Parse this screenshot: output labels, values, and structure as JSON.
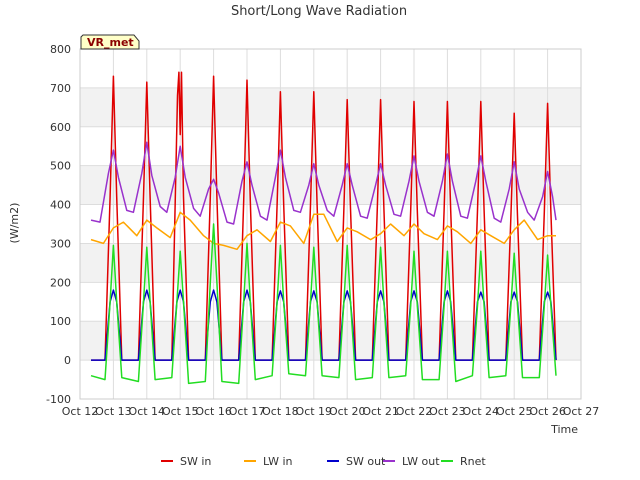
{
  "chart_data": {
    "type": "line",
    "title": "Short/Long Wave Radiation",
    "station_label": "VR_met",
    "xlabel": "Time",
    "ylabel": "(W/m2)",
    "xlim": [
      12,
      27
    ],
    "ylim": [
      -100,
      800
    ],
    "x_ticks": [
      {
        "v": 12,
        "label": "Oct 12"
      },
      {
        "v": 13,
        "label": "Oct 13"
      },
      {
        "v": 14,
        "label": "Oct 14"
      },
      {
        "v": 15,
        "label": "Oct 15"
      },
      {
        "v": 16,
        "label": "Oct 16"
      },
      {
        "v": 17,
        "label": "Oct 17"
      },
      {
        "v": 18,
        "label": "Oct 18"
      },
      {
        "v": 19,
        "label": "Oct 19"
      },
      {
        "v": 20,
        "label": "Oct 20"
      },
      {
        "v": 21,
        "label": "Oct 21"
      },
      {
        "v": 22,
        "label": "Oct 22"
      },
      {
        "v": 23,
        "label": "Oct 23"
      },
      {
        "v": 24,
        "label": "Oct 24"
      },
      {
        "v": 25,
        "label": "Oct 25"
      },
      {
        "v": 26,
        "label": "Oct 26"
      },
      {
        "v": 27,
        "label": "Oct 27"
      }
    ],
    "y_ticks": [
      {
        "v": -100,
        "label": "-100"
      },
      {
        "v": 0,
        "label": "0"
      },
      {
        "v": 100,
        "label": "100"
      },
      {
        "v": 200,
        "label": "200"
      },
      {
        "v": 300,
        "label": "300"
      },
      {
        "v": 400,
        "label": "400"
      },
      {
        "v": 500,
        "label": "500"
      },
      {
        "v": 600,
        "label": "600"
      },
      {
        "v": 700,
        "label": "700"
      },
      {
        "v": 800,
        "label": "800"
      }
    ],
    "grid": true,
    "legend_position": "bottom",
    "series": [
      {
        "name": "SW in",
        "color": "#e00000",
        "x": [
          12.33,
          12.75,
          12.9,
          13.0,
          13.1,
          13.25,
          13.75,
          13.9,
          14.0,
          14.1,
          14.25,
          14.75,
          14.92,
          14.96,
          15.0,
          15.04,
          15.1,
          15.25,
          15.75,
          15.9,
          16.0,
          16.1,
          16.25,
          16.75,
          16.9,
          17.0,
          17.1,
          17.25,
          17.75,
          17.9,
          18.0,
          18.1,
          18.25,
          18.75,
          18.9,
          19.0,
          19.1,
          19.25,
          19.75,
          19.9,
          20.0,
          20.1,
          20.25,
          20.75,
          20.9,
          21.0,
          21.1,
          21.25,
          21.75,
          21.9,
          22.0,
          22.1,
          22.25,
          22.75,
          22.9,
          23.0,
          23.1,
          23.25,
          23.75,
          23.9,
          24.0,
          24.1,
          24.25,
          24.75,
          24.9,
          25.0,
          25.1,
          25.25,
          25.75,
          25.9,
          26.0,
          26.1,
          26.25
        ],
        "y": [
          0,
          0,
          420,
          730,
          420,
          0,
          0,
          420,
          715,
          420,
          0,
          0,
          680,
          740,
          580,
          740,
          420,
          0,
          0,
          420,
          730,
          420,
          0,
          0,
          410,
          720,
          410,
          0,
          0,
          400,
          690,
          400,
          0,
          0,
          400,
          690,
          400,
          0,
          0,
          390,
          670,
          390,
          0,
          0,
          390,
          670,
          390,
          0,
          0,
          385,
          665,
          385,
          0,
          0,
          385,
          665,
          385,
          0,
          0,
          385,
          665,
          385,
          0,
          0,
          370,
          635,
          370,
          0,
          0,
          380,
          660,
          380,
          0
        ]
      },
      {
        "name": "LW in",
        "color": "#ffa500",
        "x": [
          12.33,
          12.7,
          13.0,
          13.3,
          13.7,
          14.0,
          14.3,
          14.7,
          15.0,
          15.3,
          15.7,
          16.0,
          16.3,
          16.7,
          17.0,
          17.3,
          17.7,
          18.0,
          18.3,
          18.7,
          19.0,
          19.3,
          19.7,
          20.0,
          20.3,
          20.7,
          21.0,
          21.3,
          21.7,
          22.0,
          22.3,
          22.7,
          23.0,
          23.3,
          23.7,
          24.0,
          24.3,
          24.7,
          25.0,
          25.3,
          25.7,
          26.0,
          26.25
        ],
        "y": [
          310,
          300,
          340,
          355,
          320,
          360,
          340,
          315,
          380,
          360,
          320,
          300,
          295,
          285,
          320,
          335,
          305,
          355,
          345,
          300,
          375,
          375,
          305,
          340,
          330,
          310,
          325,
          350,
          320,
          350,
          325,
          310,
          345,
          330,
          300,
          335,
          320,
          300,
          335,
          360,
          310,
          320,
          320
        ]
      },
      {
        "name": "SW out",
        "color": "#0000cc",
        "x": [
          12.33,
          12.75,
          12.9,
          13.0,
          13.1,
          13.25,
          13.75,
          13.9,
          14.0,
          14.1,
          14.25,
          14.75,
          14.9,
          15.0,
          15.1,
          15.25,
          15.75,
          15.9,
          16.0,
          16.1,
          16.25,
          16.75,
          16.9,
          17.0,
          17.1,
          17.25,
          17.75,
          17.9,
          18.0,
          18.1,
          18.25,
          18.75,
          18.9,
          19.0,
          19.1,
          19.25,
          19.75,
          19.9,
          20.0,
          20.1,
          20.25,
          20.75,
          20.9,
          21.0,
          21.1,
          21.25,
          21.75,
          21.9,
          22.0,
          22.1,
          22.25,
          22.75,
          22.9,
          23.0,
          23.1,
          23.25,
          23.75,
          23.9,
          24.0,
          24.1,
          24.25,
          24.75,
          24.9,
          25.0,
          25.1,
          25.25,
          25.75,
          25.9,
          26.0,
          26.1,
          26.25
        ],
        "y": [
          0,
          0,
          150,
          180,
          150,
          0,
          0,
          150,
          180,
          150,
          0,
          0,
          150,
          180,
          150,
          0,
          0,
          150,
          180,
          150,
          0,
          0,
          150,
          180,
          150,
          0,
          0,
          150,
          178,
          150,
          0,
          0,
          150,
          178,
          150,
          0,
          0,
          150,
          178,
          150,
          0,
          0,
          150,
          178,
          150,
          0,
          0,
          150,
          178,
          150,
          0,
          0,
          150,
          178,
          150,
          0,
          0,
          150,
          175,
          150,
          0,
          0,
          150,
          175,
          150,
          0,
          0,
          150,
          175,
          150,
          0
        ]
      },
      {
        "name": "LW out",
        "color": "#9932cc",
        "x": [
          12.33,
          12.6,
          12.85,
          13.0,
          13.15,
          13.4,
          13.6,
          13.85,
          14.0,
          14.15,
          14.4,
          14.6,
          14.85,
          15.0,
          15.15,
          15.4,
          15.6,
          15.85,
          16.0,
          16.15,
          16.4,
          16.6,
          16.85,
          17.0,
          17.15,
          17.4,
          17.6,
          17.85,
          18.0,
          18.15,
          18.4,
          18.6,
          18.85,
          19.0,
          19.15,
          19.4,
          19.6,
          19.85,
          20.0,
          20.15,
          20.4,
          20.6,
          20.85,
          21.0,
          21.15,
          21.4,
          21.6,
          21.85,
          22.0,
          22.15,
          22.4,
          22.6,
          22.85,
          23.0,
          23.15,
          23.4,
          23.6,
          23.85,
          24.0,
          24.15,
          24.4,
          24.6,
          24.85,
          25.0,
          25.15,
          25.4,
          25.6,
          25.85,
          26.0,
          26.15,
          26.25
        ],
        "y": [
          360,
          355,
          480,
          540,
          470,
          385,
          380,
          480,
          560,
          475,
          395,
          380,
          470,
          550,
          470,
          390,
          370,
          440,
          465,
          430,
          355,
          350,
          460,
          510,
          450,
          370,
          360,
          470,
          540,
          470,
          385,
          380,
          450,
          505,
          450,
          385,
          370,
          450,
          505,
          450,
          370,
          365,
          450,
          505,
          450,
          375,
          370,
          460,
          525,
          460,
          380,
          370,
          460,
          530,
          460,
          370,
          365,
          460,
          525,
          460,
          365,
          355,
          440,
          510,
          440,
          380,
          360,
          420,
          485,
          420,
          360
        ]
      },
      {
        "name": "Rnet",
        "color": "#22dd22",
        "x": [
          12.33,
          12.75,
          12.9,
          13.0,
          13.1,
          13.25,
          13.75,
          13.9,
          14.0,
          14.1,
          14.25,
          14.75,
          14.9,
          15.0,
          15.1,
          15.25,
          15.75,
          15.9,
          16.0,
          16.1,
          16.25,
          16.75,
          16.9,
          17.0,
          17.1,
          17.25,
          17.75,
          17.9,
          18.0,
          18.1,
          18.25,
          18.75,
          18.9,
          19.0,
          19.1,
          19.25,
          19.75,
          19.9,
          20.0,
          20.1,
          20.25,
          20.75,
          20.9,
          21.0,
          21.1,
          21.25,
          21.75,
          21.9,
          22.0,
          22.1,
          22.25,
          22.75,
          22.9,
          23.0,
          23.1,
          23.25,
          23.75,
          23.9,
          24.0,
          24.1,
          24.25,
          24.75,
          24.9,
          25.0,
          25.1,
          25.25,
          25.75,
          25.9,
          26.0,
          26.1,
          26.25
        ],
        "y": [
          -40,
          -50,
          150,
          295,
          150,
          -45,
          -55,
          150,
          290,
          150,
          -50,
          -45,
          150,
          280,
          150,
          -60,
          -55,
          200,
          350,
          200,
          -55,
          -60,
          150,
          300,
          150,
          -50,
          -40,
          150,
          295,
          150,
          -35,
          -40,
          150,
          290,
          150,
          -40,
          -45,
          150,
          295,
          150,
          -50,
          -45,
          150,
          290,
          150,
          -45,
          -40,
          140,
          280,
          140,
          -50,
          -50,
          140,
          280,
          140,
          -55,
          -40,
          140,
          280,
          140,
          -45,
          -40,
          140,
          275,
          140,
          -45,
          -45,
          140,
          270,
          140,
          -40
        ]
      }
    ]
  }
}
